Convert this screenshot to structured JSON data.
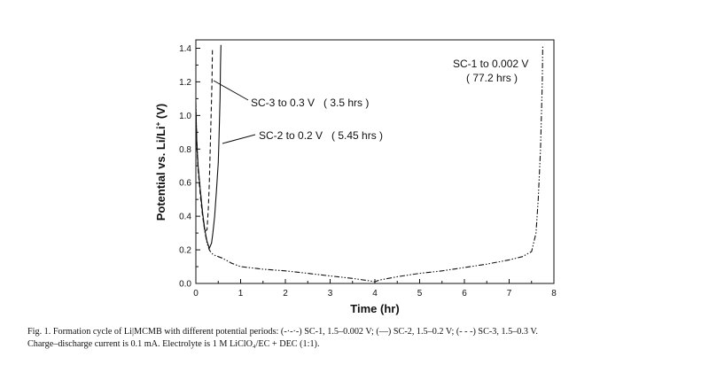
{
  "chart_data": {
    "type": "line",
    "xlabel": "Time (hr)",
    "ylabel_main": "Potential vs. Li/Li",
    "ylabel_sup": "+",
    "ylabel_tail": " (V)",
    "xlim": [
      0,
      8
    ],
    "ylim": [
      0,
      1.45
    ],
    "x_ticks": [
      "0",
      "1",
      "2",
      "3",
      "4",
      "5",
      "6",
      "7",
      "8"
    ],
    "y_ticks": [
      "0.0",
      "0.2",
      "0.4",
      "0.6",
      "0.8",
      "1.0",
      "1.2",
      "1.4"
    ],
    "grid": false,
    "series": [
      {
        "style": "dash-dot-dot",
        "x": [
          0.0,
          0.02,
          0.05,
          0.1,
          0.15,
          0.2,
          0.25,
          0.3,
          0.35,
          0.4,
          0.6,
          0.8,
          1.0,
          1.5,
          2.0,
          2.5,
          3.0,
          3.5,
          3.9,
          4.0,
          4.1,
          4.5,
          5.0,
          5.5,
          6.0,
          6.5,
          7.0,
          7.3,
          7.5,
          7.6,
          7.65,
          7.7,
          7.72,
          7.74,
          7.75
        ],
        "y": [
          1.08,
          0.85,
          0.7,
          0.55,
          0.42,
          0.31,
          0.24,
          0.2,
          0.18,
          0.17,
          0.15,
          0.12,
          0.1,
          0.085,
          0.075,
          0.06,
          0.045,
          0.03,
          0.015,
          0.01,
          0.02,
          0.04,
          0.06,
          0.075,
          0.095,
          0.115,
          0.14,
          0.16,
          0.19,
          0.3,
          0.5,
          0.8,
          1.0,
          1.2,
          1.41
        ]
      },
      {
        "style": "solid",
        "x": [
          0.0,
          0.02,
          0.05,
          0.1,
          0.15,
          0.2,
          0.25,
          0.3,
          0.35,
          0.38,
          0.42,
          0.46,
          0.5,
          0.52,
          0.54,
          0.55,
          0.56
        ],
        "y": [
          1.05,
          0.85,
          0.7,
          0.55,
          0.42,
          0.32,
          0.25,
          0.21,
          0.24,
          0.3,
          0.4,
          0.55,
          0.72,
          0.9,
          1.1,
          1.3,
          1.42
        ]
      },
      {
        "style": "dashed",
        "x": [
          0.0,
          0.02,
          0.05,
          0.1,
          0.15,
          0.2,
          0.25,
          0.28,
          0.3,
          0.32,
          0.34,
          0.36,
          0.37
        ],
        "y": [
          1.02,
          0.82,
          0.68,
          0.52,
          0.4,
          0.31,
          0.32,
          0.45,
          0.6,
          0.8,
          1.0,
          1.2,
          1.4
        ]
      }
    ],
    "annotations": [
      {
        "text": "SC-3 to 0.3 V   ( 3.5 hrs )"
      },
      {
        "text": "SC-2 to 0.2 V   ( 5.45 hrs )"
      },
      {
        "text": "SC-1 to 0.002 V"
      },
      {
        "text": "( 77.2 hrs )"
      }
    ]
  },
  "caption": {
    "line1": "Fig. 1. Formation cycle of Li|MCMB with different potential periods: (-·-·-) SC-1, 1.5–0.002 V; (—) SC-2, 1.5–0.2 V; (- - -) SC-3, 1.5–0.3 V.",
    "line2": "Charge–discharge current is 0.1 mA. Electrolyte is 1 M LiClO₄/EC + DEC (1:1)."
  }
}
